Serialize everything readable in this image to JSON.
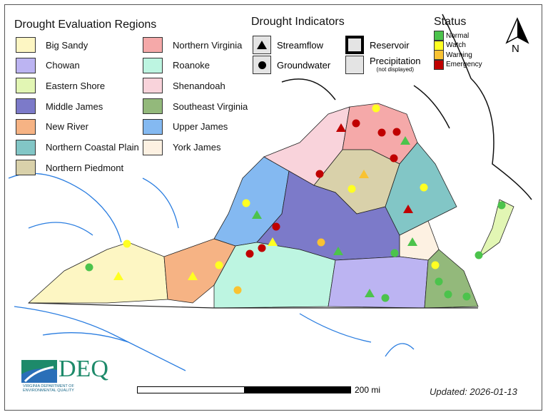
{
  "regions_legend": {
    "title": "Drought Evaluation Regions",
    "items": [
      {
        "label": "Big Sandy",
        "color": "#fdf6c3"
      },
      {
        "label": "Chowan",
        "color": "#bcb4f2"
      },
      {
        "label": "Eastern Shore",
        "color": "#e2f6b4"
      },
      {
        "label": "Middle James",
        "color": "#7c7ac9"
      },
      {
        "label": "New River",
        "color": "#f6b384"
      },
      {
        "label": "Northern Coastal Plain",
        "color": "#82c6c6"
      },
      {
        "label": "Northern Piedmont",
        "color": "#d9d1aa"
      },
      {
        "label": "Northern Virginia",
        "color": "#f5a9a9"
      },
      {
        "label": "Roanoke",
        "color": "#bdf5e1"
      },
      {
        "label": "Shenandoah",
        "color": "#f9d3db"
      },
      {
        "label": "Southeast Virginia",
        "color": "#93b97b"
      },
      {
        "label": "Upper James",
        "color": "#84b9f1"
      },
      {
        "label": "York James",
        "color": "#fdf1e2"
      }
    ]
  },
  "indicators_legend": {
    "title": "Drought Indicators",
    "streamflow": "Streamflow",
    "groundwater": "Groundwater",
    "reservoir": "Reservoir",
    "precipitation": "Precipitation",
    "precipitation_note": "(not displayed)"
  },
  "status_legend": {
    "title": "Status",
    "items": [
      {
        "label": "Normal",
        "color": "#4cc34c"
      },
      {
        "label": "Watch",
        "color": "#ffff22"
      },
      {
        "label": "Warning",
        "color": "#f9c232"
      },
      {
        "label": "Emergency",
        "color": "#c00000"
      }
    ]
  },
  "north_arrow": "N",
  "scale_bar": "200 mi",
  "updated": "Updated: 2026-01-13",
  "logo": {
    "text": "DEQ",
    "subtitle": "Virginia Department of Environmental Quality"
  }
}
